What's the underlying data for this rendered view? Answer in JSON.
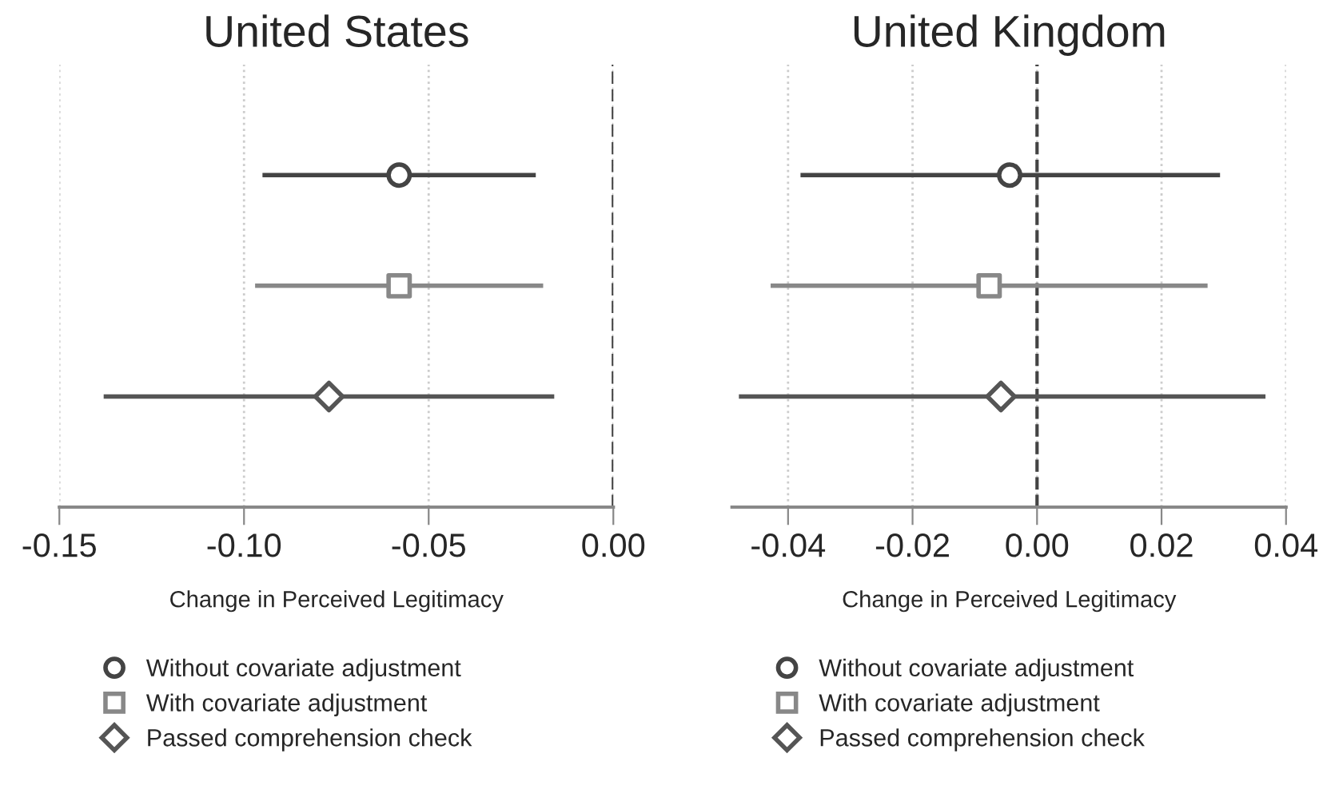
{
  "chart_data": [
    {
      "type": "scatter",
      "title": "United States",
      "xlabel": "Change in Perceived Legitimacy",
      "orientation": "horizontal",
      "categories": [
        null,
        null,
        null
      ],
      "series": [
        {
          "name": "Without covariate adjustment",
          "color": "#444444",
          "marker": "circle",
          "values": [
            -0.058,
            null,
            null
          ],
          "errors": [
            [
              -0.095,
              -0.021
            ],
            null,
            null
          ]
        },
        {
          "name": "With covariate adjustment",
          "color": "#888888",
          "marker": "square",
          "values": [
            null,
            -0.058,
            null
          ],
          "errors": [
            null,
            [
              -0.097,
              -0.019
            ],
            null
          ]
        },
        {
          "name": "Passed comprehension check",
          "color": "#555555",
          "marker": "diamond",
          "values": [
            null,
            null,
            -0.077
          ],
          "errors": [
            null,
            null,
            [
              -0.138,
              -0.016
            ]
          ]
        }
      ],
      "xlim": [
        -0.15,
        0.0
      ],
      "xticks": [
        {
          "value": -0.15,
          "label": "-0.15"
        },
        {
          "value": -0.1,
          "label": "-0.10"
        },
        {
          "value": -0.05,
          "label": "-0.05"
        },
        {
          "value": 0.0,
          "label": "0.00"
        }
      ],
      "ref_lines": [
        {
          "axis": "x",
          "value": 0.0,
          "color": "#444444",
          "line_style": "dashed"
        }
      ],
      "grid": "x",
      "legend": "bottom",
      "tick_labels": "x"
    },
    {
      "type": "scatter",
      "title": "United Kingdom",
      "xlabel": "Change in Perceived Legitimacy",
      "orientation": "horizontal",
      "categories": [
        null,
        null,
        null
      ],
      "series": [
        {
          "name": "Without covariate adjustment",
          "color": "#444444",
          "marker": "circle",
          "values": [
            -0.0044,
            null,
            null
          ],
          "errors": [
            [
              -0.038,
              0.0294
            ],
            null,
            null
          ]
        },
        {
          "name": "With covariate adjustment",
          "color": "#888888",
          "marker": "square",
          "values": [
            null,
            -0.0077,
            null
          ],
          "errors": [
            null,
            [
              -0.0428,
              0.0274
            ],
            null
          ]
        },
        {
          "name": "Passed comprehension check",
          "color": "#555555",
          "marker": "diamond",
          "values": [
            null,
            null,
            -0.0058
          ],
          "errors": [
            null,
            null,
            [
              -0.0479,
              0.0367
            ]
          ]
        }
      ],
      "xlim": [
        -0.049,
        0.04
      ],
      "xticks": [
        {
          "value": -0.04,
          "label": "-0.04"
        },
        {
          "value": -0.02,
          "label": "-0.02"
        },
        {
          "value": 0.0,
          "label": "0.00"
        },
        {
          "value": 0.02,
          "label": "0.02"
        },
        {
          "value": 0.04,
          "label": "0.04"
        }
      ],
      "ref_lines": [
        {
          "axis": "x",
          "value": 0.0,
          "color": "#444444",
          "line_style": "dashed"
        }
      ],
      "grid": "x",
      "legend": "bottom",
      "tick_labels": "x"
    }
  ]
}
